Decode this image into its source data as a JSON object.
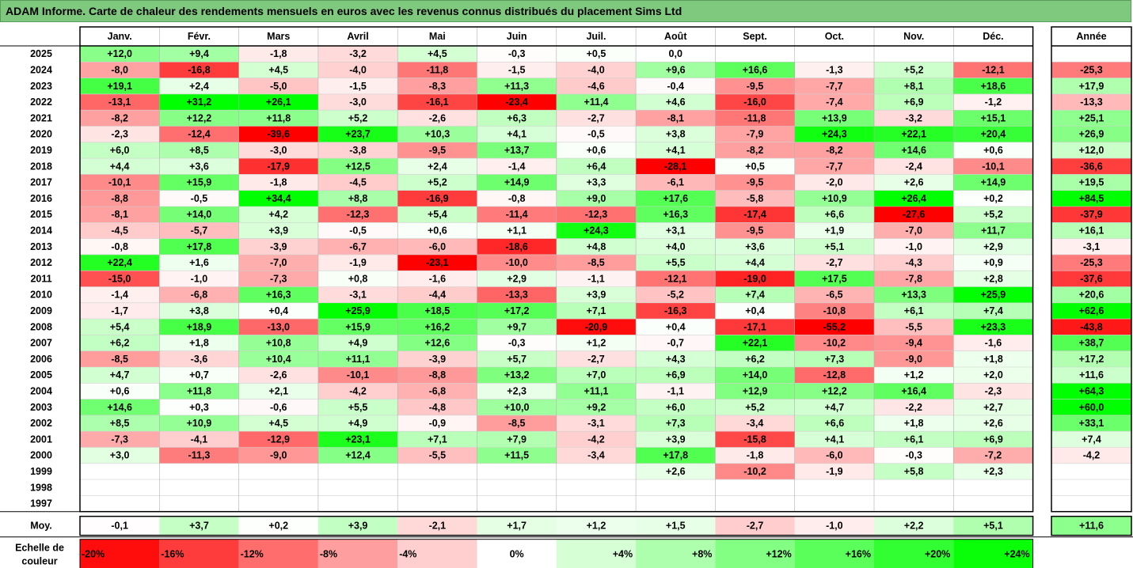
{
  "title": "ADAM Informe. Carte de chaleur des rendements mensuels en euros avec les revenus connus distribués du placement Sims Ltd",
  "chart_data": {
    "type": "heatmap",
    "title": "ADAM Informe. Carte de chaleur des rendements mensuels en euros avec les revenus connus distribués du placement Sims Ltd",
    "columns": [
      "Janv.",
      "Févr.",
      "Mars",
      "Avril",
      "Mai",
      "Juin",
      "Juil.",
      "Août",
      "Sept.",
      "Oct.",
      "Nov.",
      "Déc."
    ],
    "annual_label": "Année",
    "average_label": "Moy.",
    "rows": [
      {
        "year": "2025",
        "values": [
          12.0,
          9.4,
          -1.8,
          -3.2,
          4.5,
          -0.3,
          0.5,
          0.0,
          null,
          null,
          null,
          null
        ],
        "annual": null
      },
      {
        "year": "2024",
        "values": [
          -8.0,
          -16.8,
          4.5,
          -4.0,
          -11.8,
          -1.5,
          -4.0,
          9.6,
          16.6,
          -1.3,
          5.2,
          -12.1
        ],
        "annual": -25.3
      },
      {
        "year": "2023",
        "values": [
          19.1,
          2.4,
          -5.0,
          -1.5,
          -8.3,
          11.3,
          -4.6,
          -0.4,
          -9.5,
          -7.7,
          8.1,
          18.6
        ],
        "annual": 17.9
      },
      {
        "year": "2022",
        "values": [
          -13.1,
          31.2,
          26.1,
          -3.0,
          -16.1,
          -23.4,
          11.4,
          4.6,
          -16.0,
          -7.4,
          6.9,
          -1.2
        ],
        "annual": -13.3
      },
      {
        "year": "2021",
        "values": [
          -8.2,
          12.2,
          11.8,
          5.2,
          -2.6,
          6.3,
          -2.7,
          -8.1,
          -11.8,
          13.9,
          -3.2,
          15.1
        ],
        "annual": 25.1
      },
      {
        "year": "2020",
        "values": [
          -2.3,
          -12.4,
          -39.6,
          23.7,
          10.3,
          4.1,
          -0.5,
          3.8,
          -7.9,
          24.3,
          22.1,
          20.4
        ],
        "annual": 26.9
      },
      {
        "year": "2019",
        "values": [
          6.0,
          8.5,
          -3.0,
          -3.8,
          -9.5,
          13.7,
          0.6,
          4.1,
          -8.2,
          -8.2,
          14.6,
          0.6
        ],
        "annual": 12.0
      },
      {
        "year": "2018",
        "values": [
          4.4,
          3.6,
          -17.9,
          12.5,
          2.4,
          -1.4,
          6.4,
          -28.1,
          0.5,
          -7.7,
          -2.4,
          -10.1
        ],
        "annual": -36.6
      },
      {
        "year": "2017",
        "values": [
          -10.1,
          15.9,
          -1.8,
          -4.5,
          5.2,
          14.9,
          3.3,
          -6.1,
          -9.5,
          -2.0,
          2.6,
          14.9
        ],
        "annual": 19.5
      },
      {
        "year": "2016",
        "values": [
          -8.8,
          -0.5,
          34.4,
          8.8,
          -16.9,
          -0.8,
          9.0,
          17.6,
          -5.8,
          10.9,
          26.4,
          0.2
        ],
        "annual": 84.5
      },
      {
        "year": "2015",
        "values": [
          -8.1,
          14.0,
          4.2,
          -12.3,
          5.4,
          -11.4,
          -12.3,
          16.3,
          -17.4,
          6.6,
          -27.6,
          5.2
        ],
        "annual": -37.9
      },
      {
        "year": "2014",
        "values": [
          -4.5,
          -5.7,
          3.9,
          -0.5,
          0.6,
          1.1,
          24.3,
          3.1,
          -9.5,
          1.9,
          -7.0,
          11.7
        ],
        "annual": 16.1
      },
      {
        "year": "2013",
        "values": [
          -0.8,
          17.8,
          -3.9,
          -6.7,
          -6.0,
          -18.6,
          4.8,
          4.0,
          3.6,
          5.1,
          -1.0,
          2.9
        ],
        "annual": -3.1
      },
      {
        "year": "2012",
        "values": [
          22.4,
          1.6,
          -7.0,
          -1.9,
          -23.1,
          -10.0,
          -8.5,
          5.5,
          4.4,
          -2.7,
          -4.3,
          0.9
        ],
        "annual": -25.3
      },
      {
        "year": "2011",
        "values": [
          -15.0,
          -1.0,
          -7.3,
          0.8,
          -1.6,
          2.9,
          -1.1,
          -12.1,
          -19.0,
          17.5,
          -7.8,
          2.8
        ],
        "annual": -37.6
      },
      {
        "year": "2010",
        "values": [
          -1.4,
          -6.8,
          16.3,
          -3.1,
          -4.4,
          -13.3,
          3.9,
          -5.2,
          7.4,
          -6.5,
          13.3,
          25.9
        ],
        "annual": 20.6
      },
      {
        "year": "2009",
        "values": [
          -1.7,
          3.8,
          0.4,
          25.9,
          18.5,
          17.2,
          7.1,
          -16.3,
          0.4,
          -10.8,
          6.1,
          7.4
        ],
        "annual": 62.6
      },
      {
        "year": "2008",
        "values": [
          5.4,
          18.9,
          -13.0,
          15.9,
          16.2,
          9.7,
          -20.9,
          0.4,
          -17.1,
          -55.2,
          -5.5,
          23.3
        ],
        "annual": -43.8
      },
      {
        "year": "2007",
        "values": [
          6.2,
          1.8,
          10.8,
          4.9,
          12.6,
          -0.3,
          1.2,
          -0.7,
          22.1,
          -10.2,
          -9.4,
          -1.6
        ],
        "annual": 38.7
      },
      {
        "year": "2006",
        "values": [
          -8.5,
          -3.6,
          10.4,
          11.1,
          -3.9,
          5.7,
          -2.7,
          4.3,
          6.2,
          7.3,
          -9.0,
          1.8
        ],
        "annual": 17.2
      },
      {
        "year": "2005",
        "values": [
          4.7,
          0.7,
          -2.6,
          -10.1,
          -8.8,
          13.2,
          7.0,
          6.9,
          14.0,
          -12.8,
          1.2,
          2.0
        ],
        "annual": 11.6
      },
      {
        "year": "2004",
        "values": [
          0.6,
          11.8,
          2.1,
          -4.2,
          -6.8,
          2.3,
          11.1,
          -1.1,
          12.9,
          12.2,
          16.4,
          -2.3
        ],
        "annual": 64.3
      },
      {
        "year": "2003",
        "values": [
          14.6,
          0.3,
          -0.6,
          5.5,
          -4.8,
          10.0,
          9.2,
          6.0,
          5.2,
          4.7,
          -2.2,
          2.7
        ],
        "annual": 60.0
      },
      {
        "year": "2002",
        "values": [
          8.5,
          10.9,
          4.5,
          4.9,
          -0.9,
          -8.5,
          -3.1,
          7.3,
          -3.4,
          6.6,
          1.8,
          2.6
        ],
        "annual": 33.1
      },
      {
        "year": "2001",
        "values": [
          -7.3,
          -4.1,
          -12.9,
          23.1,
          7.1,
          7.9,
          -4.2,
          3.9,
          -15.8,
          4.1,
          6.1,
          6.9
        ],
        "annual": 7.4
      },
      {
        "year": "2000",
        "values": [
          3.0,
          -11.3,
          -9.0,
          12.4,
          -5.5,
          11.5,
          -3.4,
          17.8,
          -1.8,
          -6.0,
          -0.3,
          -7.2
        ],
        "annual": -4.2
      },
      {
        "year": "1999",
        "values": [
          null,
          null,
          null,
          null,
          null,
          null,
          null,
          2.6,
          -10.2,
          -1.9,
          5.8,
          2.3
        ],
        "annual": null
      },
      {
        "year": "1998",
        "values": [
          null,
          null,
          null,
          null,
          null,
          null,
          null,
          null,
          null,
          null,
          null,
          null
        ],
        "annual": null
      },
      {
        "year": "1997",
        "values": [
          null,
          null,
          null,
          null,
          null,
          null,
          null,
          null,
          null,
          null,
          null,
          null
        ],
        "annual": null
      }
    ],
    "averages": [
      -0.1,
      3.7,
      0.2,
      3.9,
      -2.1,
      1.7,
      1.2,
      1.5,
      -2.7,
      -1.0,
      2.2,
      5.1
    ],
    "average_annual": 11.6,
    "scale_label": "Echelle de couleur",
    "scale": [
      {
        "label": "-20%",
        "value": -20
      },
      {
        "label": "-16%",
        "value": -16
      },
      {
        "label": "-12%",
        "value": -12
      },
      {
        "label": "-8%",
        "value": -8
      },
      {
        "label": "-4%",
        "value": -4
      },
      {
        "label": "0%",
        "value": 0
      },
      {
        "label": "+4%",
        "value": 4
      },
      {
        "label": "+8%",
        "value": 8
      },
      {
        "label": "+12%",
        "value": 12
      },
      {
        "label": "+16%",
        "value": 16
      },
      {
        "label": "+20%",
        "value": 20
      },
      {
        "label": "+24%",
        "value": 24
      }
    ],
    "colors": {
      "negative": "#ff0000",
      "neutral": "#ffffff",
      "positive": "#00ff00",
      "header_bg": "#7fc97f"
    }
  }
}
